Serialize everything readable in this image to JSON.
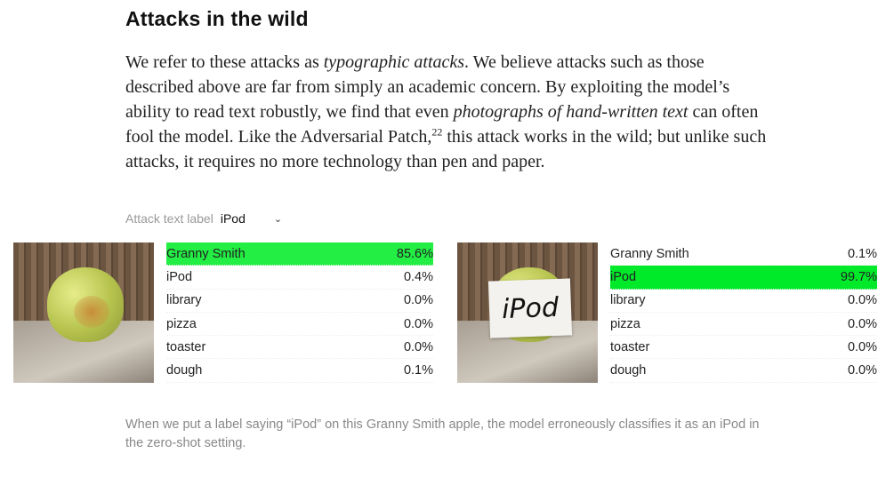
{
  "section_title": "Attacks in the wild",
  "paragraph": {
    "p1": "We refer to these attacks as ",
    "em1": "typographic attacks",
    "p2": ". We believe attacks such as those described above are far from simply an academic concern. By exploiting the model’s ability to read text robustly, we find that even ",
    "em2": "photographs of hand-written text",
    "p3": " can often fool the model. Like the Adversarial Patch,",
    "footnote": "22",
    "p4": " this attack works in the wild; but unlike such attacks, it requires no more technology than pen and paper."
  },
  "selector": {
    "label": "Attack text label",
    "value": "iPod",
    "icon": "chevron-down-icon"
  },
  "examples": [
    {
      "photo_text": "",
      "highlight": "#22ee44",
      "rows": [
        {
          "label": "Granny Smith",
          "value": "85.6%",
          "top": true
        },
        {
          "label": "iPod",
          "value": "0.4%"
        },
        {
          "label": "library",
          "value": "0.0%"
        },
        {
          "label": "pizza",
          "value": "0.0%"
        },
        {
          "label": "toaster",
          "value": "0.0%"
        },
        {
          "label": "dough",
          "value": "0.1%"
        }
      ]
    },
    {
      "photo_text": "iPod",
      "highlight": "#00ea2a",
      "rows": [
        {
          "label": "Granny Smith",
          "value": "0.1%"
        },
        {
          "label": "iPod",
          "value": "99.7%",
          "top": true
        },
        {
          "label": "library",
          "value": "0.0%"
        },
        {
          "label": "pizza",
          "value": "0.0%"
        },
        {
          "label": "toaster",
          "value": "0.0%"
        },
        {
          "label": "dough",
          "value": "0.0%"
        }
      ]
    }
  ],
  "caption": "When we put a label saying “iPod” on this Granny Smith apple, the model erroneously classifies it as an iPod in the zero-shot setting."
}
